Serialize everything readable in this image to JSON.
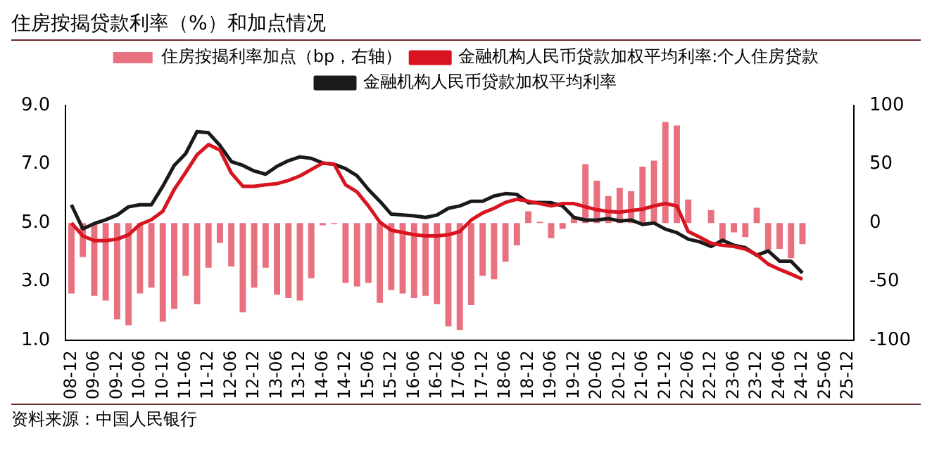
{
  "chart_data": {
    "type": "line",
    "title": "住房按揭贷款利率（%）和加点情况",
    "annotations": [
      "资料来源：中国人民银行"
    ],
    "categories": [
      "08-12",
      null,
      "09-06",
      null,
      "09-12",
      null,
      "10-06",
      null,
      "10-12",
      null,
      "11-06",
      null,
      "11-12",
      null,
      "12-06",
      null,
      "12-12",
      null,
      "13-06",
      null,
      "13-12",
      null,
      "14-06",
      null,
      "14-12",
      null,
      "15-06",
      null,
      "15-12",
      null,
      "16-06",
      null,
      "16-12",
      null,
      "17-06",
      null,
      "17-12",
      null,
      "18-06",
      null,
      "18-12",
      null,
      "19-06",
      null,
      "19-12",
      null,
      "20-06",
      null,
      "20-12",
      null,
      "21-06",
      null,
      "21-12",
      null,
      "22-06",
      null,
      "22-12",
      null,
      "23-06",
      null,
      "23-12",
      null,
      "24-06",
      null,
      "24-12",
      null,
      "25-06",
      null,
      "25-12"
    ],
    "series": [
      {
        "name": "住房按揭利率加点（bp，右轴）",
        "type": "bar",
        "axis": "y2",
        "color": "#e8707f",
        "values": [
          -60,
          -29,
          -62,
          -66,
          -82,
          -87,
          -60,
          -55,
          -84,
          -73,
          -45,
          -69,
          -38,
          -17,
          -37,
          -76,
          -55,
          -38,
          -61,
          -64,
          -66,
          -47,
          -2,
          -1,
          -51,
          -54,
          -51,
          -68,
          -57,
          -60,
          -64,
          -62,
          -69,
          -88,
          -91,
          -70,
          -45,
          -48,
          -33,
          -19,
          10,
          1,
          -13,
          -5,
          5,
          50,
          36,
          23,
          30,
          27,
          48,
          53,
          86,
          83,
          20,
          null,
          11,
          -16,
          -8,
          -12,
          13,
          -23,
          -22,
          -30,
          -18,
          null,
          null,
          null,
          null
        ]
      },
      {
        "name": "金融机构人民币贷款加权平均利率:个人住房贷款",
        "color": "#d7141f",
        "values": [
          5.0,
          4.56,
          4.4,
          4.4,
          4.45,
          4.6,
          4.95,
          5.11,
          5.4,
          6.14,
          6.72,
          7.32,
          7.67,
          7.48,
          6.7,
          6.25,
          6.25,
          6.3,
          6.34,
          6.45,
          6.6,
          6.82,
          7.04,
          7.0,
          6.3,
          6.06,
          5.58,
          5.03,
          4.75,
          4.68,
          4.6,
          4.56,
          4.56,
          4.6,
          4.71,
          5.1,
          5.34,
          5.5,
          5.7,
          5.81,
          5.74,
          5.66,
          5.58,
          5.66,
          5.66,
          5.55,
          5.45,
          5.39,
          5.37,
          5.42,
          5.47,
          5.58,
          5.66,
          5.58,
          4.71,
          4.52,
          4.31,
          4.24,
          4.2,
          4.11,
          3.92,
          3.6,
          3.42,
          3.26,
          3.09,
          null,
          null,
          null,
          null
        ]
      },
      {
        "name": "金融机构人民币贷款加权平均利率",
        "color": "#1a1a1a",
        "values": [
          5.62,
          4.8,
          4.98,
          5.11,
          5.27,
          5.55,
          5.62,
          5.62,
          6.25,
          6.96,
          7.36,
          8.11,
          8.07,
          7.64,
          7.09,
          6.96,
          6.77,
          6.66,
          6.93,
          7.12,
          7.25,
          7.2,
          7.04,
          7.0,
          6.85,
          6.61,
          6.14,
          5.74,
          5.3,
          5.27,
          5.24,
          5.19,
          5.27,
          5.5,
          5.58,
          5.74,
          5.74,
          5.92,
          6.0,
          5.97,
          5.69,
          5.7,
          5.69,
          5.58,
          5.19,
          5.1,
          5.1,
          5.15,
          5.07,
          5.1,
          4.95,
          5.0,
          4.79,
          4.67,
          4.45,
          4.36,
          4.2,
          4.41,
          4.24,
          4.16,
          3.9,
          4.05,
          3.7,
          3.7,
          3.3,
          null,
          null,
          null,
          null
        ]
      }
    ],
    "ylim": [
      1.0,
      9.0
    ],
    "yticks": [
      {
        "value": 1,
        "label": "1.0"
      },
      {
        "value": 3,
        "label": "3.0"
      },
      {
        "value": 5,
        "label": "5.0"
      },
      {
        "value": 7,
        "label": "7.0"
      },
      {
        "value": 9,
        "label": "9.0"
      }
    ],
    "y2lim": [
      -100,
      100
    ],
    "y2ticks": [
      -100,
      -50,
      0,
      50,
      100
    ],
    "grid": false,
    "legend": "top",
    "marker": "none",
    "line_style": "solid"
  }
}
